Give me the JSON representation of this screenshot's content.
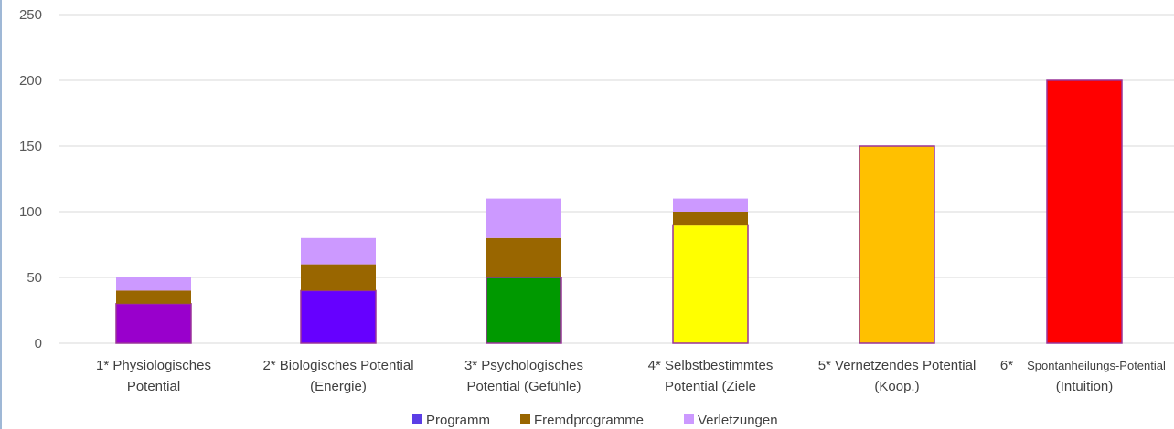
{
  "chart_data": {
    "type": "bar",
    "stacked": true,
    "ylim": [
      0,
      250
    ],
    "yticks": [
      0,
      50,
      100,
      150,
      200,
      250
    ],
    "grid": true,
    "legend_position": "bottom-center",
    "categories": [
      {
        "lines": [
          "1* Physiologisches",
          "Potential"
        ]
      },
      {
        "lines": [
          "2* Biologisches Potential",
          "(Energie)"
        ]
      },
      {
        "lines": [
          "3* Psychologisches",
          "Potential (Gefühle)"
        ]
      },
      {
        "lines": [
          "4* Selbstbestimmtes",
          "Potential (Ziele"
        ]
      },
      {
        "lines": [
          "5* Vernetzendes Potential",
          "(Koop.)"
        ]
      },
      {
        "lines": [
          "6*",
          "(Intuition)"
        ],
        "line1_small": "Spontanheilungs-Potential"
      }
    ],
    "series": [
      {
        "name": "Programm",
        "values": [
          30,
          40,
          50,
          90,
          150,
          200
        ],
        "legend_color": "#5b3ee6"
      },
      {
        "name": "Fremdprogramme",
        "values": [
          10,
          20,
          30,
          10,
          0,
          0
        ],
        "color": "#996600"
      },
      {
        "name": "Verletzungen",
        "values": [
          10,
          20,
          30,
          10,
          0,
          0
        ],
        "color": "#cc99ff"
      }
    ],
    "point_colors": {
      "Programm": [
        "#9900cc",
        "#6600ff",
        "#009900",
        "#ffff00",
        "#ffc000",
        "#ff0000"
      ]
    },
    "bar_outline_color": "#993399",
    "gridline_color": "#d9d9d9"
  }
}
